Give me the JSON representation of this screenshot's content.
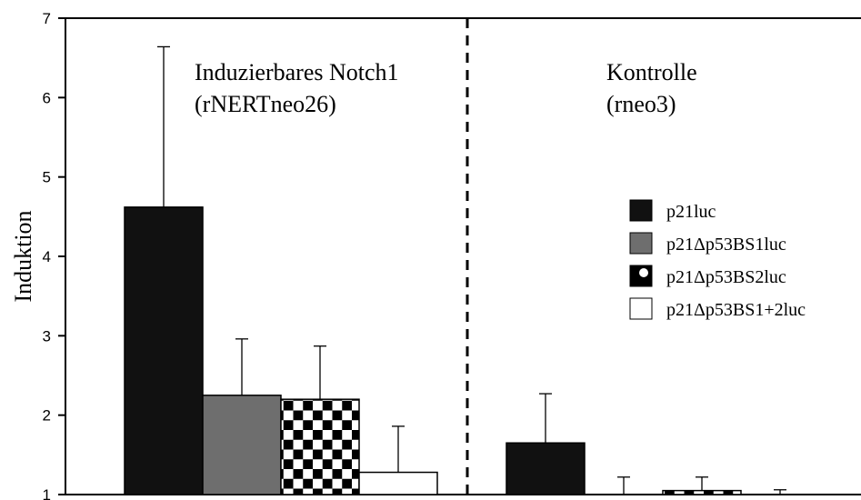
{
  "chart_data": {
    "type": "bar",
    "ylabel": "Induktion",
    "ylim": [
      1,
      7
    ],
    "yticks": [
      1,
      2,
      3,
      4,
      5,
      6,
      7
    ],
    "grid": false,
    "legend_position": "right",
    "categories": [
      {
        "line1": "Induzierbares Notch1",
        "line2": "(rNERTneo26)"
      },
      {
        "line1": "Kontrolle",
        "line2": "(rneo3)"
      }
    ],
    "series": [
      {
        "name": "p21luc",
        "pattern": "solid-black",
        "values": [
          4.62,
          1.65
        ],
        "errors": [
          2.02,
          0.62
        ]
      },
      {
        "name": "p21Δp53BS1luc",
        "pattern": "solid-gray",
        "values": [
          2.25,
          1.0
        ],
        "errors": [
          0.71,
          0.22
        ]
      },
      {
        "name": "p21Δp53BS2luc",
        "pattern": "checker",
        "values": [
          2.2,
          1.05
        ],
        "errors": [
          0.67,
          0.17
        ]
      },
      {
        "name": "p21Δp53BS1+2luc",
        "pattern": "white",
        "values": [
          1.28,
          1.0
        ],
        "errors": [
          0.58,
          0.06
        ]
      }
    ],
    "divider": "dashed-between-groups"
  }
}
